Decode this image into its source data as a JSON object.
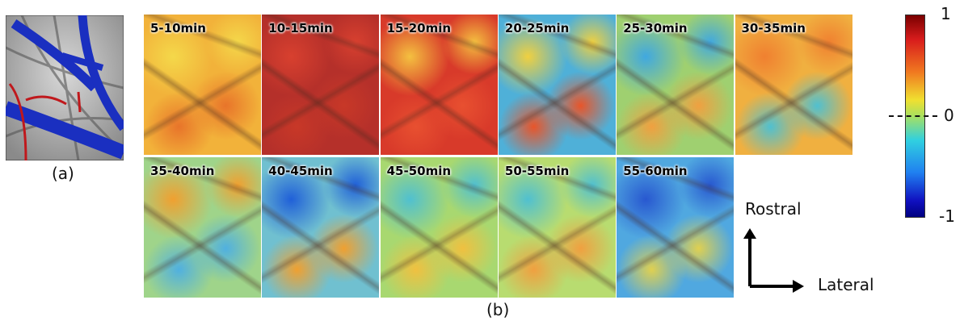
{
  "panel_a": {
    "label": "(a)"
  },
  "panel_b": {
    "label": "(b)",
    "tiles": [
      "5-10min",
      "10-15min",
      "15-20min",
      "20-25min",
      "25-30min",
      "30-35min",
      "35-40min",
      "40-45min",
      "45-50min",
      "50-55min",
      "55-60min"
    ]
  },
  "colorbar": {
    "max_label": "1",
    "mid_label": "0",
    "min_label": "-1"
  },
  "axes": {
    "vertical": "Rostral",
    "horizontal": "Lateral"
  }
}
